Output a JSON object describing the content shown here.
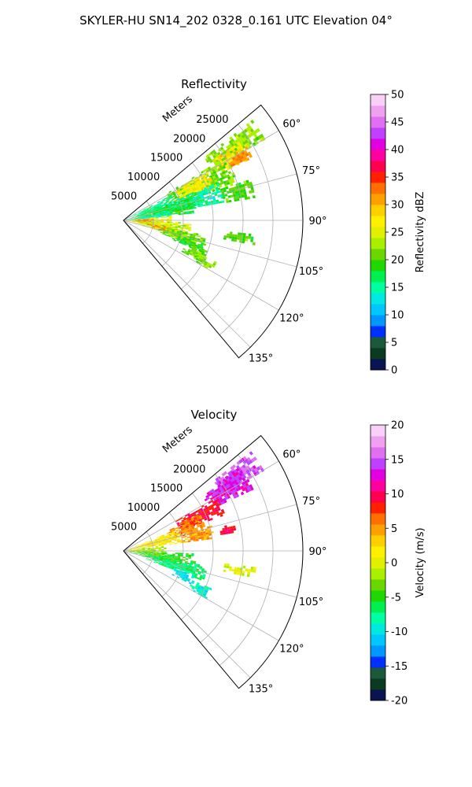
{
  "figure": {
    "title": "SKYLER-HU  SN14_202  0328_0.161 UTC Elevation 04°"
  },
  "chart_data": [
    {
      "type": "heatmap",
      "projection": "polar-sector",
      "title": "Reflectivity",
      "range_label": "Meters",
      "range_ticks": [
        5000,
        10000,
        15000,
        20000,
        25000
      ],
      "range_max": 30000,
      "azimuth_range_deg": [
        50,
        140
      ],
      "azimuth_ticks": [
        "60°",
        "75°",
        "90°",
        "105°",
        "120°",
        "135°"
      ],
      "grid": true,
      "colorbar": {
        "label": "Reflectivity dBZ",
        "min": 0,
        "max": 50,
        "ticks": [
          0,
          5,
          10,
          15,
          20,
          25,
          30,
          35,
          40,
          45,
          50
        ],
        "colors": [
          "#0a1450",
          "#0a3a20",
          "#1a5a3a",
          "#0030ff",
          "#0098ff",
          "#00c8ff",
          "#00e8e0",
          "#00ffa0",
          "#00f050",
          "#20d800",
          "#6ad800",
          "#a8f000",
          "#e0f000",
          "#fff000",
          "#ffd000",
          "#ffa000",
          "#ff7000",
          "#ff2000",
          "#ff0050",
          "#ff00a0",
          "#e000e0",
          "#c040ff",
          "#e070f0",
          "#f0a0f0",
          "#f8d0f8"
        ]
      },
      "echoes": [
        {
          "az_start": 52,
          "az_end": 60,
          "r_start": 17000,
          "r_end": 27000,
          "value": 22
        },
        {
          "az_start": 56,
          "az_end": 64,
          "r_start": 18000,
          "r_end": 23000,
          "value": 28
        },
        {
          "az_start": 59,
          "az_end": 63,
          "r_start": 20000,
          "r_end": 24000,
          "value": 32
        },
        {
          "az_start": 58,
          "az_end": 72,
          "r_start": 8000,
          "r_end": 20000,
          "value": 21
        },
        {
          "az_start": 60,
          "az_end": 70,
          "r_start": 10000,
          "r_end": 16000,
          "value": 27
        },
        {
          "az_start": 62,
          "az_end": 76,
          "r_start": 1000,
          "r_end": 9000,
          "value": 16
        },
        {
          "az_start": 68,
          "az_end": 80,
          "r_start": 5000,
          "r_end": 17000,
          "value": 15
        },
        {
          "az_start": 70,
          "az_end": 84,
          "r_start": 2000,
          "r_end": 12000,
          "value": 18
        },
        {
          "az_start": 72,
          "az_end": 80,
          "r_start": 17000,
          "r_end": 22000,
          "value": 20
        },
        {
          "az_start": 78,
          "az_end": 86,
          "r_start": 0,
          "r_end": 8000,
          "value": 14
        },
        {
          "az_start": 84,
          "az_end": 100,
          "r_start": 0,
          "r_end": 8000,
          "value": 26
        },
        {
          "az_start": 86,
          "az_end": 98,
          "r_start": 1500,
          "r_end": 5000,
          "value": 32
        },
        {
          "az_start": 92,
          "az_end": 106,
          "r_start": 1500,
          "r_end": 11000,
          "value": 24
        },
        {
          "az_start": 98,
          "az_end": 104,
          "r_start": 4000,
          "r_end": 8000,
          "value": 31
        },
        {
          "az_start": 100,
          "az_end": 110,
          "r_start": 6000,
          "r_end": 14000,
          "value": 21
        },
        {
          "az_start": 96,
          "az_end": 100,
          "r_start": 17000,
          "r_end": 22000,
          "value": 20
        },
        {
          "az_start": 106,
          "az_end": 112,
          "r_start": 9000,
          "r_end": 14000,
          "value": 19
        },
        {
          "az_start": 110,
          "az_end": 118,
          "r_start": 11000,
          "r_end": 15000,
          "value": 21
        },
        {
          "az_start": 114,
          "az_end": 120,
          "r_start": 13500,
          "r_end": 17000,
          "value": 22
        }
      ]
    },
    {
      "type": "heatmap",
      "projection": "polar-sector",
      "title": "Velocity",
      "range_label": "Meters",
      "range_ticks": [
        5000,
        10000,
        15000,
        20000,
        25000
      ],
      "range_max": 30000,
      "azimuth_range_deg": [
        50,
        140
      ],
      "azimuth_ticks": [
        "60°",
        "75°",
        "90°",
        "105°",
        "120°",
        "135°"
      ],
      "grid": true,
      "colorbar": {
        "label": "Velocity (m/s)",
        "min": -20,
        "max": 20,
        "ticks": [
          -20,
          -15,
          -10,
          -5,
          0,
          5,
          10,
          15,
          20
        ],
        "colors": [
          "#0a1450",
          "#0a3a20",
          "#1a5a3a",
          "#0030ff",
          "#0098ff",
          "#00c8ff",
          "#00e8e0",
          "#00ffa0",
          "#00f050",
          "#20d800",
          "#6ad800",
          "#a8f000",
          "#e0f000",
          "#fff000",
          "#ffd000",
          "#ffa000",
          "#ff7000",
          "#ff2000",
          "#ff0050",
          "#ff00a0",
          "#e000e0",
          "#c040ff",
          "#e070f0",
          "#f0a0f0",
          "#f8d0f8"
        ]
      },
      "echoes": [
        {
          "az_start": 52,
          "az_end": 60,
          "r_start": 19000,
          "r_end": 27000,
          "value": 15
        },
        {
          "az_start": 54,
          "az_end": 64,
          "r_start": 16000,
          "r_end": 24000,
          "value": 13
        },
        {
          "az_start": 60,
          "az_end": 70,
          "r_start": 10000,
          "r_end": 18000,
          "value": 9
        },
        {
          "az_start": 64,
          "az_end": 76,
          "r_start": 8000,
          "r_end": 14000,
          "value": 6
        },
        {
          "az_start": 68,
          "az_end": 82,
          "r_start": 1000,
          "r_end": 10000,
          "value": 2
        },
        {
          "az_start": 74,
          "az_end": 82,
          "r_start": 10000,
          "r_end": 15000,
          "value": 5
        },
        {
          "az_start": 76,
          "az_end": 80,
          "r_start": 16000,
          "r_end": 19000,
          "value": 9
        },
        {
          "az_start": 82,
          "az_end": 96,
          "r_start": 0,
          "r_end": 7000,
          "value": -2
        },
        {
          "az_start": 84,
          "az_end": 92,
          "r_start": 0,
          "r_end": 2500,
          "value": 3
        },
        {
          "az_start": 92,
          "az_end": 106,
          "r_start": 1000,
          "r_end": 12000,
          "value": -5
        },
        {
          "az_start": 100,
          "az_end": 110,
          "r_start": 4000,
          "r_end": 14000,
          "value": -7
        },
        {
          "az_start": 97,
          "az_end": 101,
          "r_start": 17000,
          "r_end": 22000,
          "value": 0
        },
        {
          "az_start": 108,
          "az_end": 116,
          "r_start": 9000,
          "r_end": 12500,
          "value": -10
        },
        {
          "az_start": 113,
          "az_end": 120,
          "r_start": 12500,
          "r_end": 16000,
          "value": -9
        }
      ]
    }
  ]
}
